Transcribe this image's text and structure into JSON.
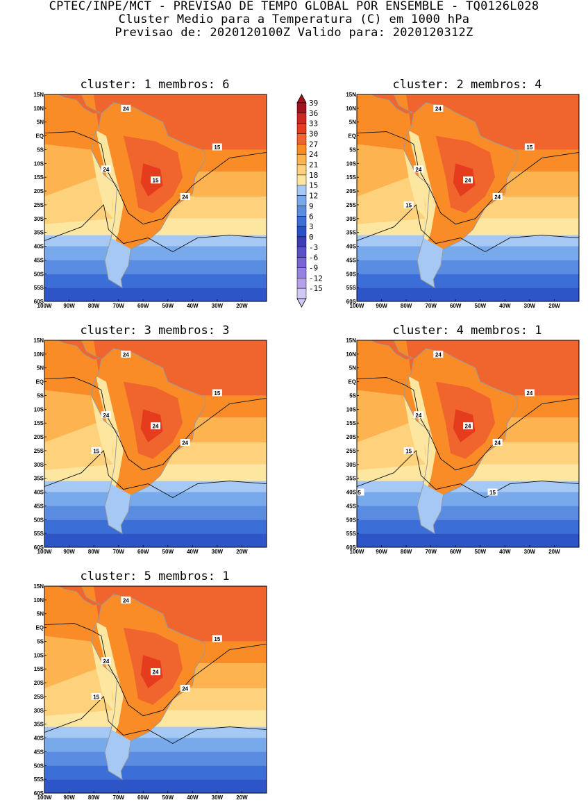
{
  "header": {
    "line1": "CPTEC/INPE/MCT - PREVISAO DE TEMPO GLOBAL POR ENSEMBLE - TQ0126L028",
    "line2": "Cluster Medio para a Temperatura (C) em 1000 hPa",
    "line3": "Previsao de: 2020120100Z   Valido para: 2020120312Z"
  },
  "lat_labels": [
    "15N",
    "10N",
    "5N",
    "EQ",
    "5S",
    "10S",
    "15S",
    "20S",
    "25S",
    "30S",
    "35S",
    "40S",
    "45S",
    "50S",
    "55S",
    "60S"
  ],
  "lon_labels": [
    "100W",
    "90W",
    "80W",
    "70W",
    "60W",
    "50W",
    "40W",
    "30W",
    "20W"
  ],
  "panels": [
    {
      "title": "cluster: 1   membros: 6",
      "contour_labels": [
        "24",
        "24",
        "24",
        "15",
        "15"
      ]
    },
    {
      "title": "cluster: 2   membros: 4",
      "contour_labels": [
        "24",
        "24",
        "24",
        "24",
        "15",
        "15"
      ]
    },
    {
      "title": "cluster: 3   membros: 3",
      "contour_labels": [
        "24",
        "24",
        "24",
        "24",
        "15",
        "15"
      ]
    },
    {
      "title": "cluster: 4   membros: 1",
      "contour_labels": [
        "24",
        "24",
        "24",
        "24",
        "24",
        "15",
        "15",
        "5"
      ]
    },
    {
      "title": "cluster: 5   membros: 1",
      "contour_labels": [
        "24",
        "24",
        "24",
        "24",
        "15",
        "15"
      ]
    }
  ],
  "colorbar": {
    "labels": [
      "39",
      "36",
      "33",
      "30",
      "27",
      "24",
      "21",
      "18",
      "15",
      "12",
      "9",
      "6",
      "3",
      "0",
      "-3",
      "-6",
      "-9",
      "-12",
      "-15"
    ],
    "colors": [
      "#a0141e",
      "#c8281e",
      "#e63c1e",
      "#f0642d",
      "#fa8c28",
      "#fdb450",
      "#fed27d",
      "#fde6a0",
      "#a5c8f5",
      "#78aaeb",
      "#5a8ce1",
      "#3c6ed7",
      "#2850c8",
      "#3c3cb4",
      "#5a50c8",
      "#7864d7",
      "#9682e1",
      "#b4a0eb",
      "#d2c8f5"
    ]
  }
}
